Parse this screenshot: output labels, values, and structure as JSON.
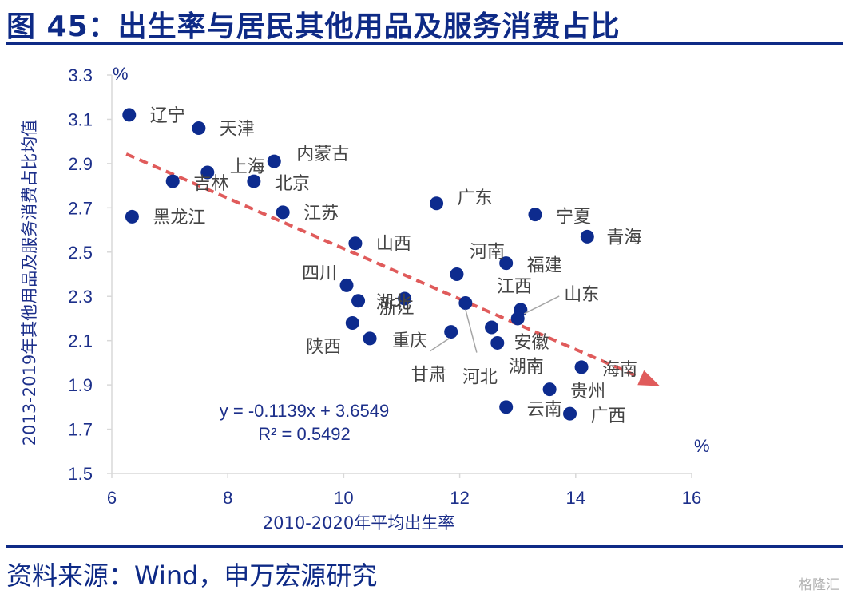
{
  "header": {
    "title": "图 45：出生率与居民其他用品及服务消费占比"
  },
  "footer": {
    "source": "资料来源：Wind，申万宏源研究",
    "watermark": "格隆汇"
  },
  "chart_data": {
    "type": "scatter",
    "xlabel": "2010-2020年平均出生率",
    "ylabel": "2013-2019年其他用品及服务消费占比均值",
    "x_unit": "%",
    "y_unit": "%",
    "xlim": [
      6,
      16
    ],
    "ylim": [
      1.5,
      3.3
    ],
    "xticks": [
      "6",
      "8",
      "10",
      "12",
      "14",
      "16"
    ],
    "yticks": [
      "1.5",
      "1.7",
      "1.9",
      "2.1",
      "2.3",
      "2.5",
      "2.7",
      "2.9",
      "3.1",
      "3.3"
    ],
    "grid": false,
    "trendline": {
      "equation": "y = -0.1139x + 3.6549",
      "r_squared": "R² = 0.5492",
      "slope": -0.1139,
      "intercept": 3.6549,
      "x_range": [
        6.25,
        15.45
      ],
      "color": "#e05b5b"
    },
    "marker_color": "#0d2b8e",
    "points": [
      {
        "name": "辽宁",
        "x": 6.3,
        "y": 3.12
      },
      {
        "name": "天津",
        "x": 7.5,
        "y": 3.06
      },
      {
        "name": "内蒙古",
        "x": 8.8,
        "y": 2.91
      },
      {
        "name": "上海",
        "x": 7.65,
        "y": 2.86
      },
      {
        "name": "吉林",
        "x": 7.05,
        "y": 2.82
      },
      {
        "name": "北京",
        "x": 8.45,
        "y": 2.82
      },
      {
        "name": "黑龙江",
        "x": 6.35,
        "y": 2.66
      },
      {
        "name": "江苏",
        "x": 8.95,
        "y": 2.68
      },
      {
        "name": "广东",
        "x": 11.6,
        "y": 2.72
      },
      {
        "name": "宁夏",
        "x": 13.3,
        "y": 2.67
      },
      {
        "name": "青海",
        "x": 14.2,
        "y": 2.57
      },
      {
        "name": "山西",
        "x": 10.2,
        "y": 2.54
      },
      {
        "name": "河南",
        "x": 11.95,
        "y": 2.4
      },
      {
        "name": "福建",
        "x": 12.8,
        "y": 2.45
      },
      {
        "name": "四川",
        "x": 10.05,
        "y": 2.35
      },
      {
        "name": "浙江",
        "x": 10.25,
        "y": 2.28
      },
      {
        "name": "湖北",
        "x": 11.05,
        "y": 2.29
      },
      {
        "name": "河北",
        "x": 12.1,
        "y": 2.27
      },
      {
        "name": "江西",
        "x": 13.05,
        "y": 2.24
      },
      {
        "name": "山东",
        "x": 13.0,
        "y": 2.2
      },
      {
        "name": "安徽",
        "x": 12.55,
        "y": 2.16
      },
      {
        "name": "陕西",
        "x": 10.15,
        "y": 2.18
      },
      {
        "name": "重庆",
        "x": 10.45,
        "y": 2.11
      },
      {
        "name": "甘肃",
        "x": 11.85,
        "y": 2.14
      },
      {
        "name": "湖南",
        "x": 12.65,
        "y": 2.09
      },
      {
        "name": "海南",
        "x": 14.1,
        "y": 1.98
      },
      {
        "name": "贵州",
        "x": 13.55,
        "y": 1.88
      },
      {
        "name": "云南",
        "x": 12.8,
        "y": 1.8
      },
      {
        "name": "广西",
        "x": 13.9,
        "y": 1.77
      }
    ]
  }
}
